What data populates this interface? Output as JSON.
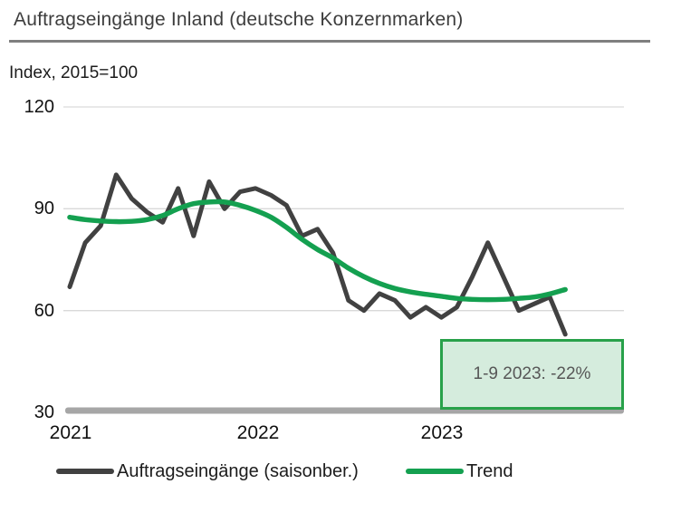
{
  "header": {
    "title": "Auftragseingänge Inland (deutsche Konzernmarken)",
    "subtitle": "Index, 2015=100"
  },
  "chart_data": {
    "type": "line",
    "title": "Auftragseingänge Inland (deutsche Konzernmarken)",
    "subtitle": "Index, 2015=100",
    "x_frequency": "monthly",
    "x_range": "2021-01 to 2023-09",
    "x_tick_labels": [
      "2021",
      "2022",
      "2023"
    ],
    "ytick_labels": [
      "120",
      "90",
      "60",
      "30"
    ],
    "grid_yticks": [
      120,
      90,
      60
    ],
    "baseline_value": 30,
    "ylim": [
      30,
      120
    ],
    "grid": true,
    "legend_position": "bottom",
    "series": [
      {
        "name": "Auftragseingänge (saisonber.)",
        "color": "#414141",
        "smooth": false,
        "values": [
          67,
          80,
          85,
          100,
          93,
          89,
          86,
          96,
          82,
          98,
          90,
          95,
          96,
          94,
          91,
          82,
          84,
          77,
          63,
          60,
          65,
          63,
          58,
          61,
          58,
          61,
          70,
          80,
          70,
          60,
          62,
          64,
          53
        ]
      },
      {
        "name": "Trend",
        "color": "#14a050",
        "smooth": true,
        "values": [
          87.5,
          86.8,
          86.4,
          86.2,
          86.3,
          86.8,
          88,
          90,
          91.5,
          92,
          92,
          91,
          89.5,
          87.5,
          84.5,
          81,
          78,
          75.5,
          72.5,
          70,
          68,
          66.5,
          65.5,
          64.8,
          64.2,
          63.6,
          63.3,
          63.2,
          63.3,
          63.6,
          64,
          64.9,
          66.2
        ]
      }
    ],
    "annotation": {
      "text": "1-9 2023: -22%",
      "fill": "#d5ecdd",
      "border_color": "#28a14a",
      "text_color": "#575757"
    },
    "colors": {
      "grid": "#d9d9d9",
      "axis_bar": "#a6a6a6",
      "title": "#3d3d3d",
      "title_rule": "#7f7f7f"
    }
  }
}
